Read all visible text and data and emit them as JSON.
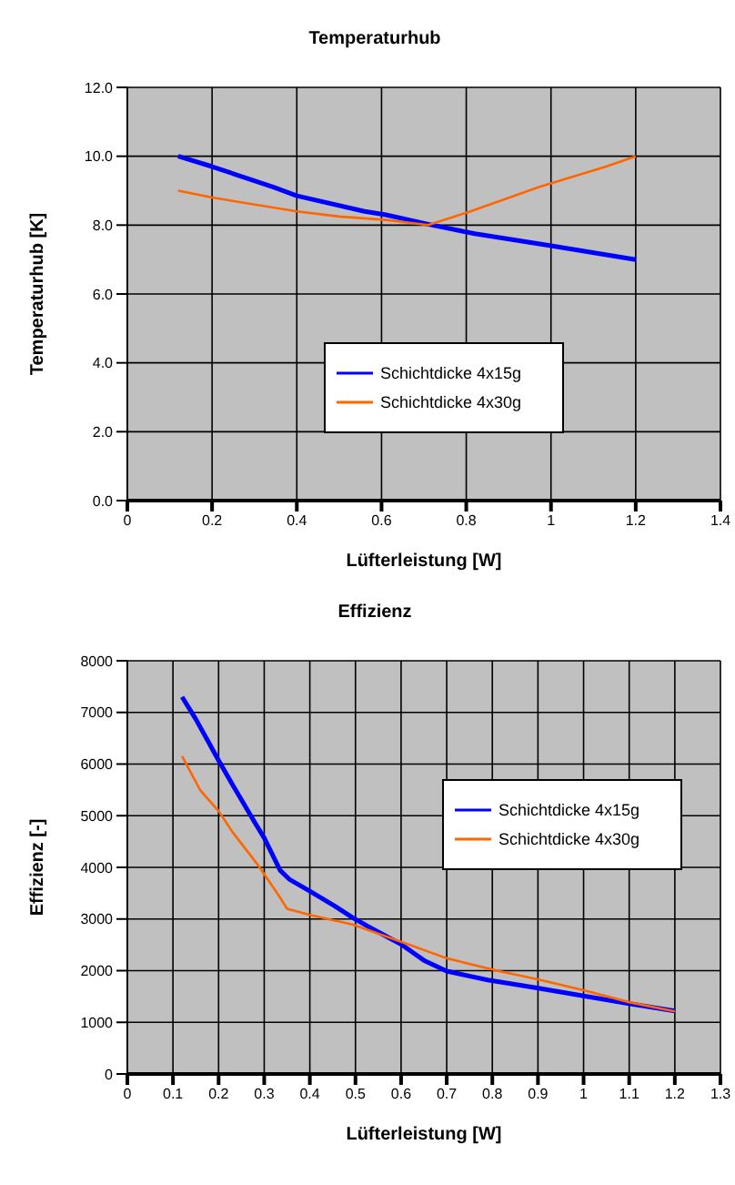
{
  "chart_data": [
    {
      "type": "line",
      "title": "Temperaturhub",
      "xlabel": "Lüfterleistung [W]",
      "ylabel": "Temperaturhub [K]",
      "xlim": [
        0,
        1.4
      ],
      "xticks": [
        0,
        0.2,
        0.4,
        0.6,
        0.8,
        1,
        1.2,
        1.4
      ],
      "ylim": [
        0,
        12
      ],
      "yticks": [
        {
          "value": 0,
          "label": "0.0"
        },
        {
          "value": 2,
          "label": "2.0"
        },
        {
          "value": 4,
          "label": "4.0"
        },
        {
          "value": 6,
          "label": "6.0"
        },
        {
          "value": 8,
          "label": "8.0"
        },
        {
          "value": 10,
          "label": "10.0"
        },
        {
          "value": 12,
          "label": "12.0"
        }
      ],
      "grid": true,
      "legend": "center",
      "marker": "none",
      "line_style": "solid",
      "series": [
        {
          "name": "Schichtdicke 4x15g",
          "color": "#0000ff",
          "x": [
            0.12,
            0.2,
            0.345,
            0.4,
            0.56,
            0.61,
            0.72,
            0.82,
            1.0,
            1.2
          ],
          "values": [
            10.0,
            9.7,
            9.1,
            8.85,
            8.4,
            8.3,
            8.0,
            7.75,
            7.4,
            7.0
          ]
        },
        {
          "name": "Schichtdicke 4x30g",
          "color": "#ff6600",
          "x": [
            0.12,
            0.2,
            0.4,
            0.5,
            0.61,
            0.71,
            0.81,
            0.97,
            1.13,
            1.2
          ],
          "values": [
            9.0,
            8.8,
            8.4,
            8.25,
            8.15,
            8.0,
            8.4,
            9.1,
            9.7,
            10.0
          ]
        }
      ]
    },
    {
      "type": "line",
      "title": "Effizienz",
      "xlabel": "Lüfterleistung [W]",
      "ylabel": "Effizienz [-]",
      "xlim": [
        0,
        1.3
      ],
      "xticks": [
        0,
        0.1,
        0.2,
        0.3,
        0.4,
        0.5,
        0.6,
        0.7,
        0.8,
        0.9,
        1,
        1.1,
        1.2,
        1.3
      ],
      "ylim": [
        0,
        8000
      ],
      "yticks": [
        0,
        1000,
        2000,
        3000,
        4000,
        5000,
        6000,
        7000,
        8000
      ],
      "grid": true,
      "legend": "top right",
      "marker": "none",
      "line_style": "solid",
      "series": [
        {
          "name": "Schichtdicke 4x15g",
          "color": "#0000ff",
          "x": [
            0.12,
            0.15,
            0.175,
            0.2,
            0.23,
            0.28,
            0.3,
            0.335,
            0.355,
            0.4,
            0.455,
            0.495,
            0.535,
            0.6,
            0.65,
            0.7,
            0.79,
            0.895,
            1.0,
            1.1,
            1.2
          ],
          "values": [
            7300,
            6870,
            6470,
            6070,
            5610,
            4860,
            4570,
            3940,
            3770,
            3540,
            3250,
            3020,
            2820,
            2510,
            2200,
            1990,
            1820,
            1670,
            1510,
            1360,
            1220
          ]
        },
        {
          "name": "Schichtdicke 4x30g",
          "color": "#ff6600",
          "x": [
            0.12,
            0.16,
            0.2,
            0.23,
            0.285,
            0.33,
            0.35,
            0.4,
            0.495,
            0.6,
            0.7,
            0.815,
            0.895,
            1.0,
            1.1,
            1.2
          ],
          "values": [
            6150,
            5490,
            5090,
            4690,
            4060,
            3480,
            3200,
            3080,
            2890,
            2560,
            2240,
            1990,
            1840,
            1620,
            1390,
            1210
          ]
        }
      ]
    }
  ]
}
